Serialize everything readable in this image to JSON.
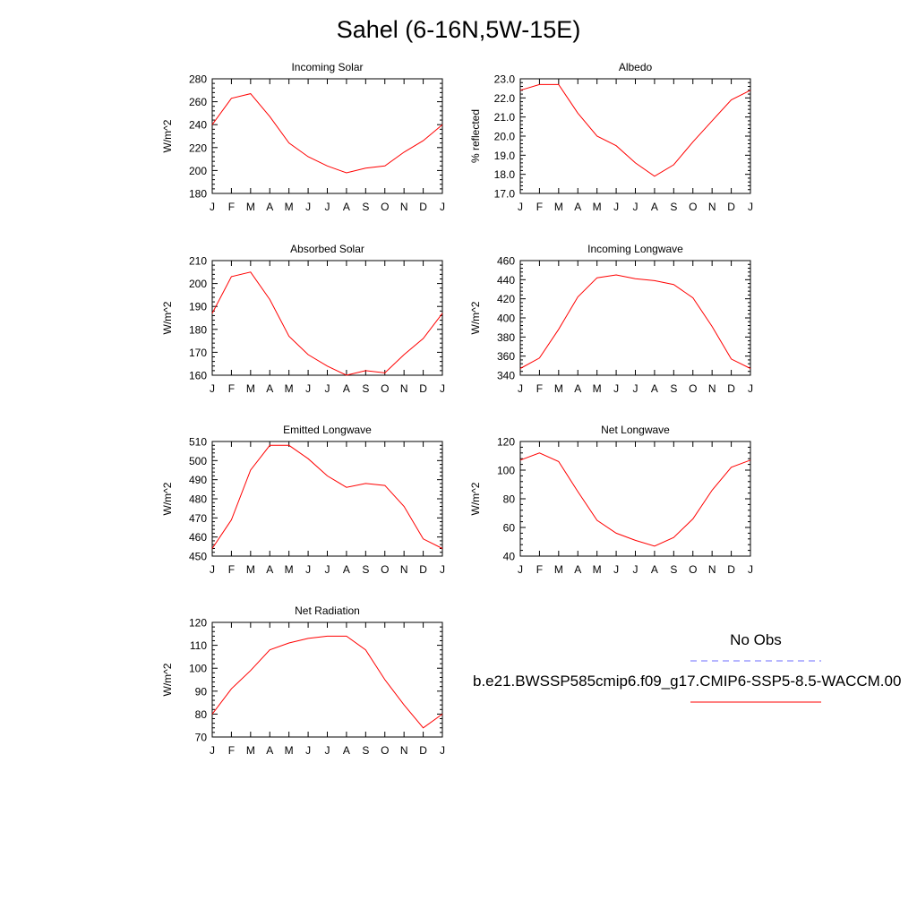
{
  "page": {
    "title": "Sahel (6-16N,5W-15E)"
  },
  "legend": {
    "entries": [
      {
        "label": "No Obs",
        "color": "#0000ff",
        "dashed": true
      },
      {
        "label": "b.e21.BWSSP585cmip6.f09_g17.CMIP6-SSP5-8.5-WACCM.00",
        "color": "#ff0000",
        "dashed": false
      }
    ]
  },
  "chart_data": [
    {
      "type": "line",
      "title": "Incoming Solar",
      "xlabel": "",
      "ylabel": "W/m^2",
      "categories": [
        "J",
        "F",
        "M",
        "A",
        "M",
        "J",
        "J",
        "A",
        "S",
        "O",
        "N",
        "D",
        "J"
      ],
      "ylim": [
        180,
        280
      ],
      "yticks": [
        180,
        200,
        220,
        240,
        260,
        280
      ],
      "tick_labels": [
        "180",
        "200",
        "220",
        "240",
        "260",
        "280"
      ],
      "series": [
        {
          "color": "#ff0000",
          "values": [
            240,
            263,
            267,
            247,
            224,
            212,
            204,
            198,
            202,
            204,
            216,
            226,
            240
          ]
        }
      ]
    },
    {
      "type": "line",
      "title": "Albedo",
      "xlabel": "",
      "ylabel": "% reflected",
      "categories": [
        "J",
        "F",
        "M",
        "A",
        "M",
        "J",
        "J",
        "A",
        "S",
        "O",
        "N",
        "D",
        "J"
      ],
      "ylim": [
        17.0,
        23.0
      ],
      "yticks": [
        17,
        18,
        19,
        20,
        21,
        22,
        23
      ],
      "tick_labels": [
        "17.0",
        "18.0",
        "19.0",
        "20.0",
        "21.0",
        "22.0",
        "23.0"
      ],
      "series": [
        {
          "color": "#ff0000",
          "values": [
            22.4,
            22.7,
            22.7,
            21.2,
            20.0,
            19.5,
            18.6,
            17.9,
            18.5,
            19.7,
            20.8,
            21.9,
            22.4
          ]
        }
      ]
    },
    {
      "type": "line",
      "title": "Absorbed Solar",
      "xlabel": "",
      "ylabel": "W/m^2",
      "categories": [
        "J",
        "F",
        "M",
        "A",
        "M",
        "J",
        "J",
        "A",
        "S",
        "O",
        "N",
        "D",
        "J"
      ],
      "ylim": [
        160,
        210
      ],
      "yticks": [
        160,
        170,
        180,
        190,
        200,
        210
      ],
      "tick_labels": [
        "160",
        "170",
        "180",
        "190",
        "200",
        "210"
      ],
      "series": [
        {
          "color": "#ff0000",
          "values": [
            187,
            203,
            205,
            193,
            177,
            169,
            164,
            160,
            162,
            161,
            169,
            176,
            187
          ]
        }
      ]
    },
    {
      "type": "line",
      "title": "Incoming Longwave",
      "xlabel": "",
      "ylabel": "W/m^2",
      "categories": [
        "J",
        "F",
        "M",
        "A",
        "M",
        "J",
        "J",
        "A",
        "S",
        "O",
        "N",
        "D",
        "J"
      ],
      "ylim": [
        340,
        460
      ],
      "yticks": [
        340,
        360,
        380,
        400,
        420,
        440,
        460
      ],
      "tick_labels": [
        "340",
        "360",
        "380",
        "400",
        "420",
        "440",
        "460"
      ],
      "series": [
        {
          "color": "#ff0000",
          "values": [
            347,
            358,
            388,
            422,
            442,
            445,
            441,
            439,
            435,
            421,
            391,
            357,
            347
          ]
        }
      ]
    },
    {
      "type": "line",
      "title": "Emitted Longwave",
      "xlabel": "",
      "ylabel": "W/m^2",
      "categories": [
        "J",
        "F",
        "M",
        "A",
        "M",
        "J",
        "J",
        "A",
        "S",
        "O",
        "N",
        "D",
        "J"
      ],
      "ylim": [
        450,
        510
      ],
      "yticks": [
        450,
        460,
        470,
        480,
        490,
        500,
        510
      ],
      "tick_labels": [
        "450",
        "460",
        "470",
        "480",
        "490",
        "500",
        "510"
      ],
      "series": [
        {
          "color": "#ff0000",
          "values": [
            454,
            469,
            495,
            508,
            508,
            501,
            492,
            486,
            488,
            487,
            476,
            459,
            454
          ]
        }
      ]
    },
    {
      "type": "line",
      "title": "Net Longwave",
      "xlabel": "",
      "ylabel": "W/m^2",
      "categories": [
        "J",
        "F",
        "M",
        "A",
        "M",
        "J",
        "J",
        "A",
        "S",
        "O",
        "N",
        "D",
        "J"
      ],
      "ylim": [
        40,
        120
      ],
      "yticks": [
        40,
        60,
        80,
        100,
        120
      ],
      "tick_labels": [
        "40",
        "60",
        "80",
        "100",
        "120"
      ],
      "series": [
        {
          "color": "#ff0000",
          "values": [
            107,
            112,
            106,
            85,
            65,
            56,
            51,
            47,
            53,
            66,
            86,
            102,
            107
          ]
        }
      ]
    },
    {
      "type": "line",
      "title": "Net Radiation",
      "xlabel": "",
      "ylabel": "W/m^2",
      "categories": [
        "J",
        "F",
        "M",
        "A",
        "M",
        "J",
        "J",
        "A",
        "S",
        "O",
        "N",
        "D",
        "J"
      ],
      "ylim": [
        70,
        120
      ],
      "yticks": [
        70,
        80,
        90,
        100,
        110,
        120
      ],
      "tick_labels": [
        "70",
        "80",
        "90",
        "100",
        "110",
        "120"
      ],
      "series": [
        {
          "color": "#ff0000",
          "values": [
            80,
            91,
            99,
            108,
            111,
            113,
            114,
            114,
            108,
            95,
            84,
            74,
            80
          ]
        }
      ]
    }
  ]
}
